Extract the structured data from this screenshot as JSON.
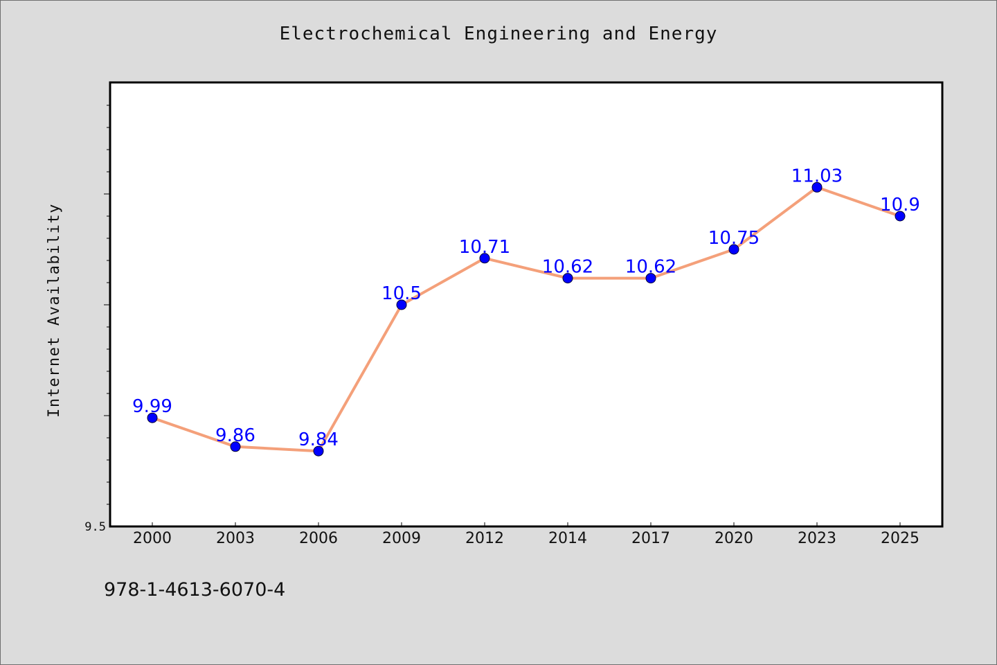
{
  "header": {
    "title": "Electrochemical Engineering and Energy"
  },
  "footer": {
    "isbn": "978-1-4613-6070-4"
  },
  "colors": {
    "background": "#dcdcdc",
    "plot_background": "#ffffff",
    "line": "#f4a07a",
    "marker": "#0000ff",
    "label": "#0000ff"
  },
  "chart_data": {
    "type": "line",
    "title": "Electrochemical Engineering and Energy",
    "xlabel": "",
    "ylabel": "Internet Availability",
    "categories": [
      "2000",
      "2003",
      "2006",
      "2009",
      "2012",
      "2014",
      "2017",
      "2020",
      "2023",
      "2025"
    ],
    "series": [
      {
        "values": [
          9.99,
          9.86,
          9.84,
          10.5,
          10.71,
          10.62,
          10.62,
          10.75,
          11.03,
          10.9
        ],
        "data_labels": [
          "9.99",
          "9.86",
          "9.84",
          "10.5",
          "10.71",
          "10.62",
          "10.62",
          "10.75",
          "11.03",
          "10.9"
        ]
      }
    ],
    "y_tick_labels": [
      "9.5"
    ],
    "ylim": [
      9.5,
      11.5
    ],
    "grid": false,
    "legend": "none"
  }
}
